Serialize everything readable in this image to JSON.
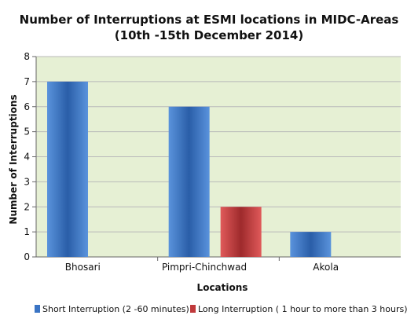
{
  "chart_data": {
    "type": "bar",
    "title": "Number of Interruptions at ESMI locations in MIDC-Areas",
    "subtitle": "(10th -15th December 2014)",
    "xlabel": "Locations",
    "ylabel": "Number of Interruptions",
    "categories": [
      "Bhosari",
      "Pimpri-Chinchwad",
      "Akola"
    ],
    "series": [
      {
        "name": "Short Interruption (2 -60 minutes)",
        "values": [
          7,
          6,
          1
        ],
        "color": "#3a74c4"
      },
      {
        "name": "Long Interruption ( 1 hour to more than 3 hours)",
        "values": [
          0,
          2,
          0
        ],
        "color": "#c0393b"
      }
    ],
    "ylim": [
      0,
      8
    ],
    "yticks": [
      0,
      1,
      2,
      3,
      4,
      5,
      6,
      7,
      8
    ],
    "grid": true,
    "legend_position": "bottom",
    "plot_background": "#e6f0d4",
    "gridline_color": "#b9b9b9"
  }
}
